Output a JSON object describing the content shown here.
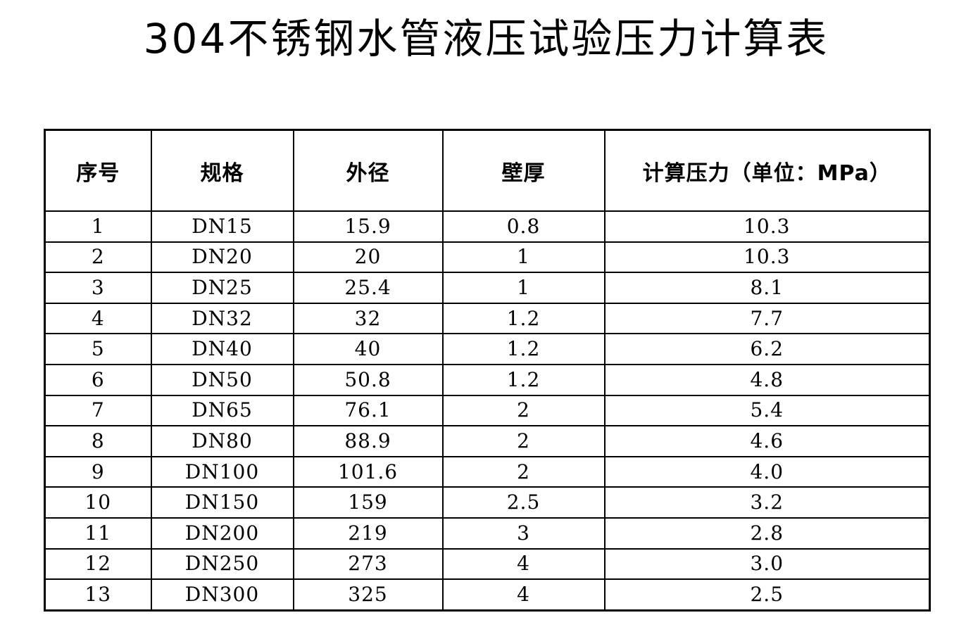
{
  "page": {
    "title": "304不锈钢水管液压试验压力计算表"
  },
  "colors": {
    "background": "#ffffff",
    "text": "#000000",
    "border": "#000000"
  },
  "table": {
    "column_keys": [
      "seq",
      "spec",
      "od",
      "wall",
      "pressure"
    ],
    "headers": [
      "序号",
      "规格",
      "外径",
      "壁厚",
      "计算压力（单位：MPa）"
    ],
    "rows": [
      {
        "seq": "1",
        "spec": "DN15",
        "od": "15.9",
        "wall": "0.8",
        "pressure": "10.3"
      },
      {
        "seq": "2",
        "spec": "DN20",
        "od": "20",
        "wall": "1",
        "pressure": "10.3"
      },
      {
        "seq": "3",
        "spec": "DN25",
        "od": "25.4",
        "wall": "1",
        "pressure": "8.1"
      },
      {
        "seq": "4",
        "spec": "DN32",
        "od": "32",
        "wall": "1.2",
        "pressure": "7.7"
      },
      {
        "seq": "5",
        "spec": "DN40",
        "od": "40",
        "wall": "1.2",
        "pressure": "6.2"
      },
      {
        "seq": "6",
        "spec": "DN50",
        "od": "50.8",
        "wall": "1.2",
        "pressure": "4.8"
      },
      {
        "seq": "7",
        "spec": "DN65",
        "od": "76.1",
        "wall": "2",
        "pressure": "5.4"
      },
      {
        "seq": "8",
        "spec": "DN80",
        "od": "88.9",
        "wall": "2",
        "pressure": "4.6"
      },
      {
        "seq": "9",
        "spec": "DN100",
        "od": "101.6",
        "wall": "2",
        "pressure": "4.0"
      },
      {
        "seq": "10",
        "spec": "DN150",
        "od": "159",
        "wall": "2.5",
        "pressure": "3.2"
      },
      {
        "seq": "11",
        "spec": "DN200",
        "od": "219",
        "wall": "3",
        "pressure": "2.8"
      },
      {
        "seq": "12",
        "spec": "DN250",
        "od": "273",
        "wall": "4",
        "pressure": "3.0"
      },
      {
        "seq": "13",
        "spec": "DN300",
        "od": "325",
        "wall": "4",
        "pressure": "2.5"
      }
    ]
  }
}
